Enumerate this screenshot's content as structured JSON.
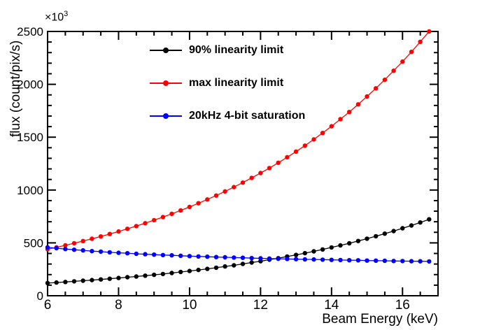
{
  "window": {
    "background": "#ffffff",
    "frame_color": "#000000"
  },
  "axes": {
    "x": {
      "title": "Beam Energy (keV)",
      "min": 6,
      "max": 17,
      "major_ticks": [
        6,
        8,
        10,
        12,
        14,
        16
      ],
      "major_tick_labels": [
        "6",
        "8",
        "10",
        "12",
        "14",
        "16"
      ],
      "minor_tick_step": 0.5
    },
    "y": {
      "title": "flux (count/pix/s)",
      "min": 0,
      "max": 2500,
      "major_ticks": [
        0,
        500,
        1000,
        1500,
        2000,
        2500
      ],
      "major_tick_labels": [
        "0",
        "500",
        "1000",
        "1500",
        "2000",
        "2500"
      ],
      "minor_tick_step": 100,
      "exponent_prefix": "×10",
      "exponent": "3"
    }
  },
  "legend": {
    "entries": [
      {
        "label": "90% linearity limit",
        "color": "#000000"
      },
      {
        "label": "max linearity limit",
        "color": "#ff0000"
      },
      {
        "label": "20kHz 4-bit saturation",
        "color": "#0000ff"
      }
    ]
  },
  "chart_data": {
    "type": "line",
    "title": "",
    "xlabel": "Beam Energy (keV)",
    "ylabel": "flux (count/pix/s)",
    "y_unit_note": "y values in units of 10^3 count/pix/s (axis shows ×10^3)",
    "xlim": [
      6,
      17
    ],
    "ylim": [
      0,
      2500
    ],
    "grid": false,
    "legend_position": "top-center-inside",
    "x": [
      6,
      6.25,
      6.5,
      6.75,
      7,
      7.25,
      7.5,
      7.75,
      8,
      8.25,
      8.5,
      8.75,
      9,
      9.25,
      9.5,
      9.75,
      10,
      10.25,
      10.5,
      10.75,
      11,
      11.25,
      11.5,
      11.75,
      12,
      12.25,
      12.5,
      12.75,
      13,
      13.25,
      13.5,
      13.75,
      14,
      14.25,
      14.5,
      14.75,
      15,
      15.25,
      15.5,
      15.75,
      16,
      16.25,
      16.5,
      16.75
    ],
    "series": [
      {
        "name": "90% linearity limit",
        "color": "#000000",
        "marker": "filled-circle",
        "values": [
          120,
          125,
          130,
          136,
          142,
          148,
          154,
          161,
          168,
          175,
          182,
          190,
          198,
          206,
          215,
          225,
          234,
          244,
          254,
          265,
          277,
          288,
          301,
          314,
          327,
          341,
          355,
          371,
          386,
          403,
          420,
          438,
          457,
          476,
          496,
          518,
          540,
          563,
          587,
          612,
          638,
          665,
          693,
          723
        ]
      },
      {
        "name": "max linearity limit",
        "color": "#ff0000",
        "marker": "filled-circle",
        "values": [
          440,
          458,
          477,
          497,
          517,
          539,
          561,
          584,
          608,
          633,
          659,
          686,
          715,
          744,
          775,
          807,
          840,
          875,
          911,
          948,
          987,
          1028,
          1070,
          1115,
          1161,
          1208,
          1258,
          1310,
          1364,
          1420,
          1479,
          1540,
          1603,
          1670,
          1738,
          1810,
          1885,
          1962,
          2043,
          2128,
          2215,
          2307,
          2402,
          2500
        ]
      },
      {
        "name": "20kHz 4-bit saturation",
        "color": "#0000ff",
        "marker": "filled-circle",
        "values": [
          458,
          450,
          442,
          435,
          429,
          422,
          417,
          411,
          406,
          402,
          397,
          393,
          389,
          385,
          382,
          378,
          375,
          372,
          369,
          366,
          364,
          361,
          359,
          356,
          354,
          352,
          350,
          348,
          346,
          344,
          343,
          341,
          339,
          338,
          336,
          335,
          333,
          332,
          331,
          329,
          328,
          327,
          326,
          325
        ]
      }
    ]
  }
}
